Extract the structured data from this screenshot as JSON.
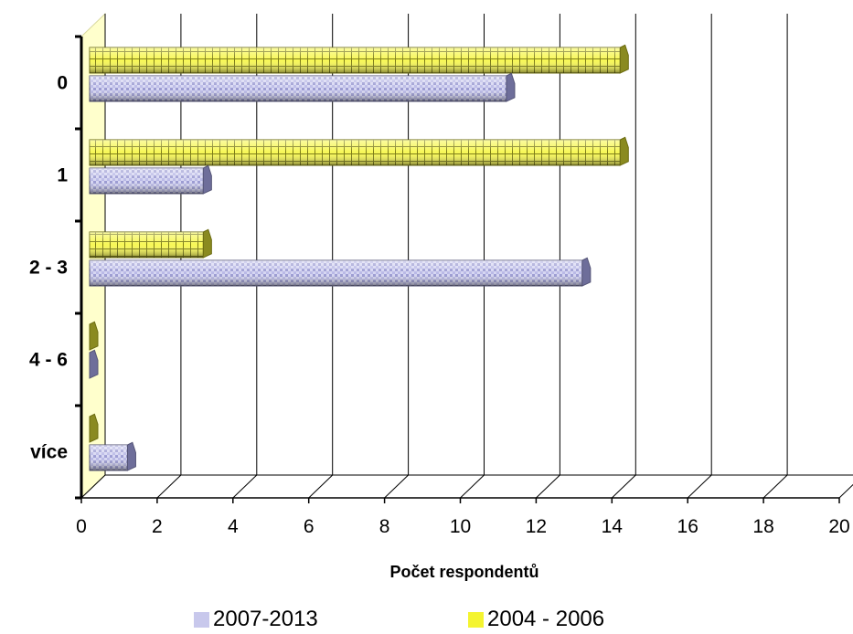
{
  "chart_data": {
    "type": "bar",
    "orientation": "horizontal",
    "categories": [
      "0",
      "1",
      "2 - 3",
      "4 - 6",
      "více"
    ],
    "series": [
      {
        "name": "2007-2013",
        "values": [
          11,
          3,
          13,
          0,
          1
        ],
        "color": "#9C9CDC"
      },
      {
        "name": "2004 - 2006",
        "values": [
          14,
          14,
          3,
          0,
          0
        ],
        "color": "#E8E800"
      }
    ],
    "xlabel": "Počet respondentů",
    "ylabel": "",
    "xlim": [
      0,
      20
    ],
    "x_ticks": [
      "0",
      "2",
      "4",
      "6",
      "8",
      "10",
      "12",
      "14",
      "16",
      "18",
      "20"
    ],
    "grid": true,
    "legend_position": "bottom"
  }
}
